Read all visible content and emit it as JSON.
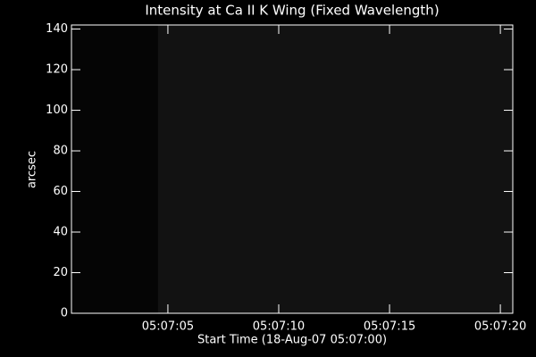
{
  "chart_data": {
    "type": "image",
    "title": "Intensity at Ca II K Wing (Fixed Wavelength)",
    "x_label": "Start Time (18-Aug-07 05:07:00)",
    "y_label": "arcsec",
    "xlim": [
      0.65,
      20.56
    ],
    "ylim": [
      0,
      142
    ],
    "xticks": [
      {
        "value": 5,
        "label": "05:07:05"
      },
      {
        "value": 10,
        "label": "05:07:10"
      },
      {
        "value": 15,
        "label": "05:07:15"
      },
      {
        "value": 20,
        "label": "05:07:20"
      }
    ],
    "yticks": [
      0,
      20,
      40,
      60,
      80,
      100,
      120,
      140
    ],
    "segments": [
      {
        "x": [
          0.65,
          4.55
        ],
        "color": "#050505"
      },
      {
        "x": [
          4.55,
          20.56
        ],
        "color": "#121212"
      }
    ],
    "background": "#000000",
    "axis_color": "#ffffff"
  }
}
